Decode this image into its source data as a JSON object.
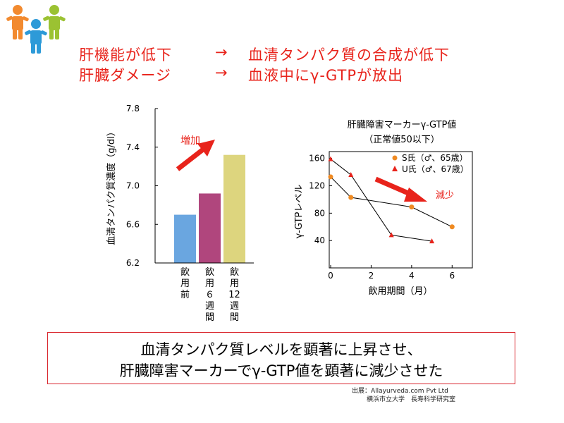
{
  "headline": {
    "row1": {
      "left": "肝機能が低下",
      "arrow": "→",
      "right": "血清タンパク質の合成が低下"
    },
    "row2": {
      "left": "肝臓ダメージ",
      "arrow": "→",
      "right": "血液中にγ-GTPが放出"
    }
  },
  "colors": {
    "headline_red": "#e8231b",
    "bar_blue": "#6aa6e0",
    "bar_purple": "#b0467d",
    "bar_khaki": "#ddd57e",
    "series_s": "#ef8a22",
    "series_u": "#e8231b",
    "people_orange": "#f28a2f",
    "people_blue": "#2d9ad8",
    "people_green": "#9bc232"
  },
  "chart_data": [
    {
      "type": "bar",
      "ylabel": "血清タンパク質濃度（g/dl）",
      "ylim": [
        6.2,
        7.8
      ],
      "yticks": [
        "6.2",
        "6.6",
        "7.0",
        "7.4",
        "7.8"
      ],
      "categories": [
        "飲用前",
        "飲用６週間",
        "飲用12週間"
      ],
      "category_labels": [
        [
          "飲",
          "用",
          "前"
        ],
        [
          "飲",
          "用",
          "６",
          "週",
          "間"
        ],
        [
          "飲",
          "用",
          "12",
          "週",
          "間"
        ]
      ],
      "values": [
        6.7,
        6.92,
        7.32
      ],
      "annotation": "増加"
    },
    {
      "type": "line",
      "title": "肝臓障害マーカーγ-GTP値",
      "subtitle": "（正常値50以下）",
      "xlabel": "飲用期間（月）",
      "ylabel": "γ-GTPレベル",
      "xlim": [
        0,
        7
      ],
      "ylim": [
        0,
        170
      ],
      "xticks": [
        "0",
        "2",
        "4",
        "6"
      ],
      "yticks": [
        "40",
        "80",
        "120",
        "160"
      ],
      "annotation": "減少",
      "series": [
        {
          "name": "S氏（♂、65歳）",
          "marker": "circle",
          "x": [
            0,
            1,
            4,
            6
          ],
          "y": [
            133,
            103,
            89,
            60
          ]
        },
        {
          "name": "U氏（♂、67歳）",
          "marker": "triangle",
          "x": [
            0,
            1,
            3,
            5
          ],
          "y": [
            159,
            136,
            48,
            39
          ]
        }
      ]
    }
  ],
  "summary": {
    "line1": "血清タンパク質レベルを顕著に上昇させ、",
    "line2": "肝臓障害マーカーでγ-GTP値を顕著に減少させた"
  },
  "source": {
    "line1": "出展：Allayurveda.com Pvt Ltd",
    "line2": "横浜市立大学　長寿科学研究室"
  }
}
